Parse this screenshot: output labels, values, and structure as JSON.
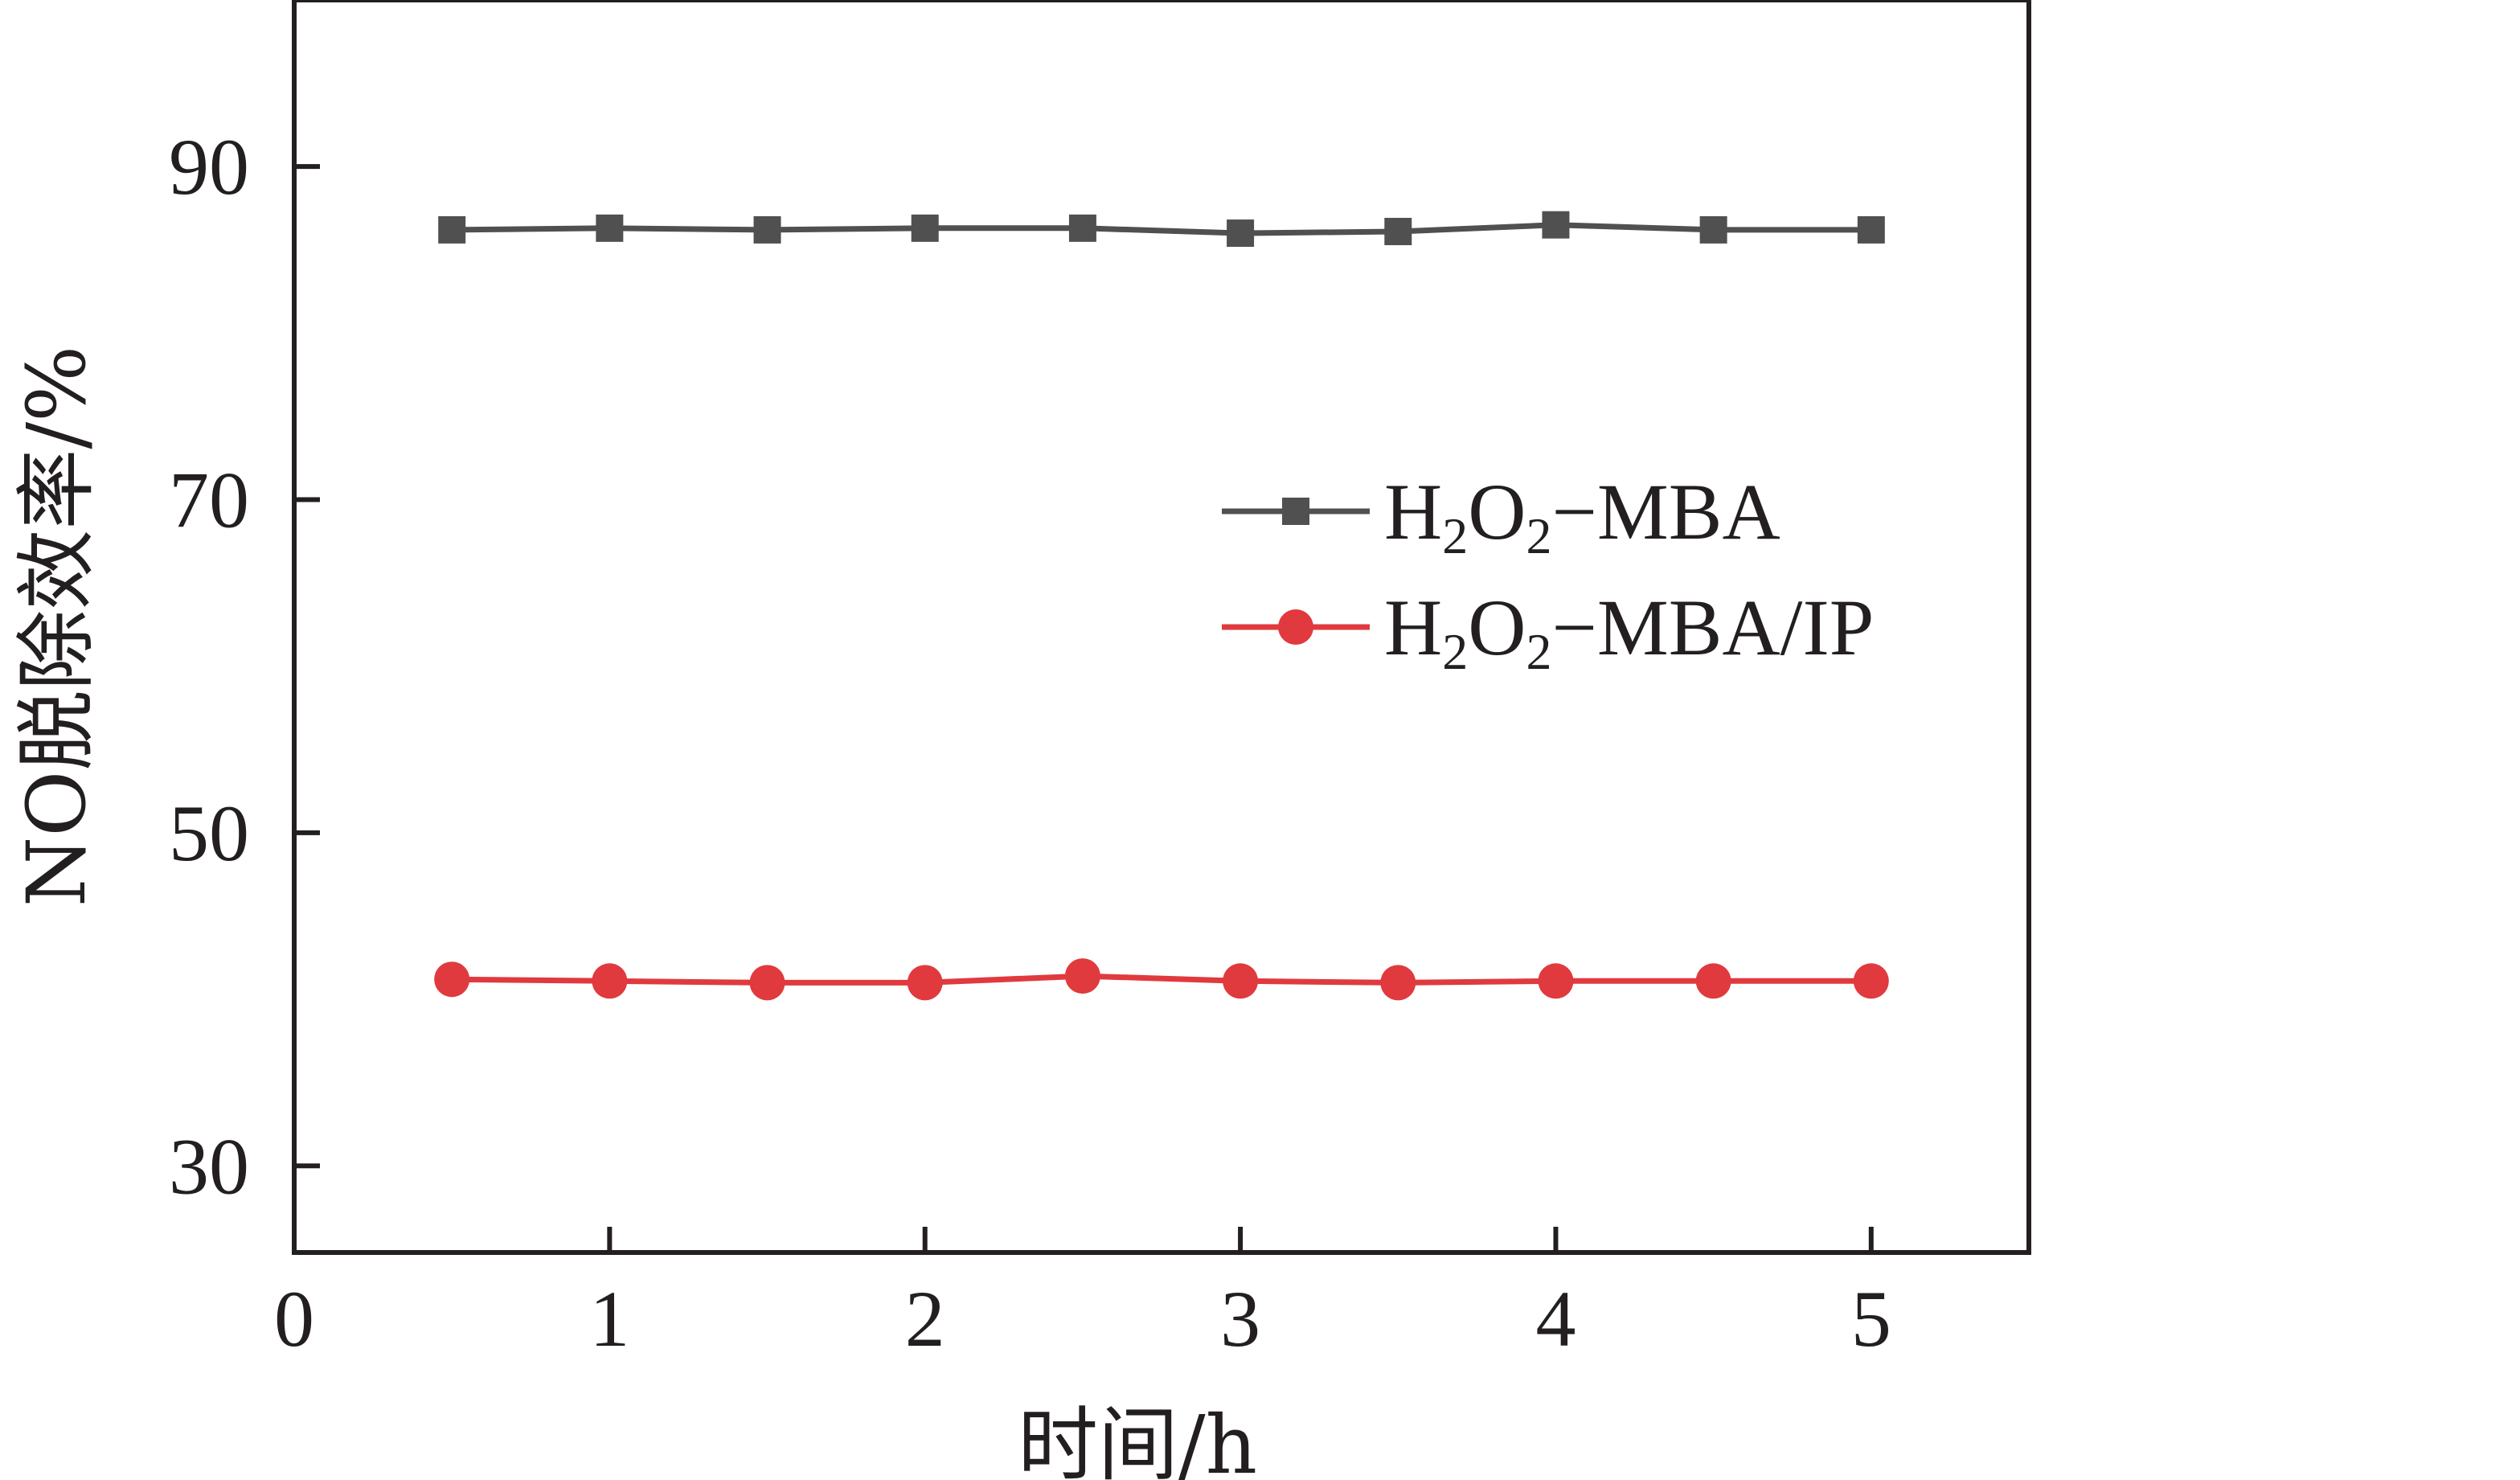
{
  "chart_data": {
    "type": "line",
    "xlabel": "时间/h",
    "ylabel": "NO脱除效率/%",
    "xlim": [
      0,
      5.5
    ],
    "ylim": [
      24.8,
      100
    ],
    "x_ticks": [
      0,
      1,
      2,
      3,
      4,
      5
    ],
    "y_ticks": [
      30,
      50,
      70,
      90
    ],
    "grid": false,
    "legend_position": "center-right",
    "x": [
      0.5,
      1.0,
      1.5,
      2.0,
      2.5,
      3.0,
      3.5,
      4.0,
      4.5,
      5.0
    ],
    "series": [
      {
        "name": "H₂O₂−MBA",
        "name_parts": {
          "a": "H",
          "sub1": "2",
          "b": "O",
          "sub2": "2",
          "c": "−MBA"
        },
        "marker": "square",
        "color": "#505050",
        "values": [
          86.2,
          86.3,
          86.2,
          86.3,
          86.3,
          86.0,
          86.1,
          86.5,
          86.2,
          86.2
        ]
      },
      {
        "name": "H₂O₂−MBA/IP",
        "name_parts": {
          "a": "H",
          "sub1": "2",
          "b": "O",
          "sub2": "2",
          "c": "−MBA/IP"
        },
        "marker": "circle",
        "color": "#e03a3e",
        "values": [
          41.2,
          41.1,
          41.0,
          41.0,
          41.4,
          41.1,
          41.0,
          41.1,
          41.1,
          41.1
        ]
      }
    ]
  }
}
